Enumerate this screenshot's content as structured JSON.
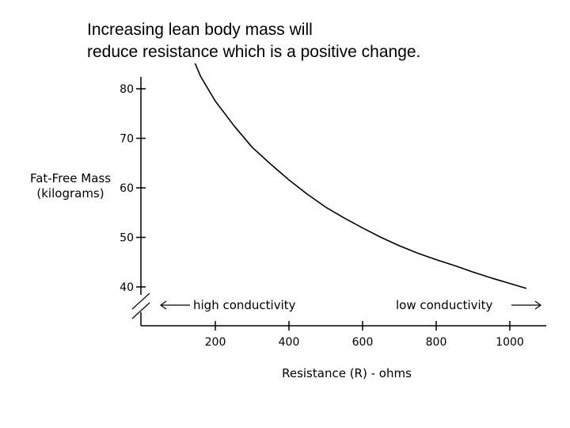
{
  "caption": {
    "line1": "Increasing lean body mass will",
    "line2": "reduce resistance which is a positive change."
  },
  "chart_data": {
    "type": "line",
    "title": "",
    "xlabel": "Resistance (R) - ohms",
    "ylabel_line1": "Fat-Free Mass",
    "ylabel_line2": "(kilograms)",
    "xlim": [
      0,
      1080
    ],
    "ylim": [
      37,
      85
    ],
    "x_ticks": [
      200,
      400,
      600,
      800,
      1000
    ],
    "x_tick_labels": [
      "200",
      "400",
      "600",
      "800",
      "1000"
    ],
    "y_ticks": [
      40,
      50,
      60,
      70,
      80
    ],
    "y_tick_labels": [
      "40",
      "50",
      "60",
      "70",
      "80"
    ],
    "grid": false,
    "series": [
      {
        "color": "#000000",
        "x": [
          140,
          160,
          200,
          250,
          300,
          350,
          400,
          450,
          500,
          550,
          600,
          650,
          700,
          750,
          800,
          850,
          900,
          950,
          1000,
          1045
        ],
        "y": [
          86,
          82.5,
          77.5,
          72.6,
          68.2,
          64.8,
          61.6,
          58.7,
          56.1,
          53.9,
          51.9,
          50.0,
          48.3,
          46.8,
          45.5,
          44.3,
          43.0,
          41.8,
          40.7,
          39.7
        ]
      }
    ],
    "annotations": {
      "high_conductivity": "high conductivity",
      "low_conductivity": "low conductivity"
    }
  }
}
